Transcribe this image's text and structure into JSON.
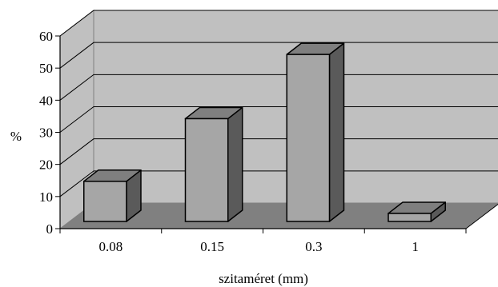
{
  "chart_data": {
    "type": "bar",
    "categories": [
      "0.08",
      "0.15",
      "0.3",
      "1"
    ],
    "values": [
      12.5,
      32,
      52,
      2.5
    ],
    "xlabel": "szitaméret (mm)",
    "ylabel": "%",
    "ylim": [
      0,
      60
    ],
    "yticks": [
      0,
      10,
      20,
      30,
      40,
      50,
      60
    ],
    "grid": true,
    "style": "3d",
    "colors": {
      "wall": "#c0c0c0",
      "floor": "#808080",
      "bar_front": "#a6a6a6",
      "bar_top": "#7f7f7f",
      "bar_side": "#5a5a5a",
      "grid": "#000000"
    }
  }
}
